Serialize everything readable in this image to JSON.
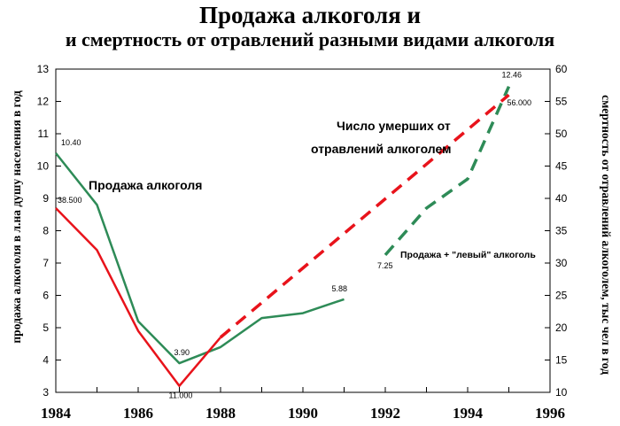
{
  "chart_data": {
    "type": "line",
    "title": "Продажа алкоголя и",
    "subtitle": "и смертность от отравлений разными видами алкоголя",
    "ylabel_left": "продажа алкоголя в л.на душу населения в год",
    "ylabel_right": "смертность от отравлений алкоголем, тыс чел в год",
    "xlim": [
      1984,
      1996
    ],
    "ylim_left": [
      3,
      13
    ],
    "ylim_right": [
      10,
      60
    ],
    "x_ticks": [
      "1984",
      "1986",
      "1988",
      "1990",
      "1992",
      "1994",
      "1996"
    ],
    "y_ticks_left": [
      "3",
      "4",
      "5",
      "6",
      "7",
      "8",
      "9",
      "10",
      "11",
      "12",
      "13"
    ],
    "y_ticks_right": [
      "10",
      "15",
      "20",
      "25",
      "30",
      "35",
      "40",
      "45",
      "50",
      "55",
      "60"
    ],
    "grid": false,
    "colors": {
      "sales": "#2e8b57",
      "deaths": "#e8131b"
    },
    "series": [
      {
        "key": "sales",
        "axis": "left",
        "style": "solid",
        "x": [
          1984,
          1985,
          1986,
          1987,
          1988,
          1989,
          1990,
          1991
        ],
        "y": [
          10.4,
          8.8,
          5.2,
          3.9,
          4.4,
          5.3,
          5.45,
          5.88
        ]
      },
      {
        "key": "sales_illegal",
        "axis": "left",
        "style": "dashed",
        "x": [
          1992,
          1993,
          1994,
          1995
        ],
        "y": [
          7.25,
          8.7,
          9.6,
          12.46
        ]
      },
      {
        "key": "deaths",
        "axis": "right",
        "style": "solid",
        "x": [
          1984,
          1985,
          1986,
          1987,
          1988
        ],
        "y": [
          38.5,
          32.0,
          19.5,
          11.0,
          18.5
        ]
      },
      {
        "key": "deaths_dashed",
        "axis": "right",
        "style": "dashed",
        "x": [
          1988,
          1995
        ],
        "y": [
          18.5,
          56.0
        ]
      }
    ],
    "data_labels": [
      {
        "axis": "left",
        "x": 1984,
        "y": 10.4,
        "text": "10.40"
      },
      {
        "axis": "right",
        "x": 1984,
        "y": 38.5,
        "text": "38.500"
      },
      {
        "axis": "left",
        "x": 1987,
        "y": 3.9,
        "text": "3.90"
      },
      {
        "axis": "right",
        "x": 1987,
        "y": 11.0,
        "text": "11.000"
      },
      {
        "axis": "left",
        "x": 1991,
        "y": 5.88,
        "text": "5.88"
      },
      {
        "axis": "left",
        "x": 1992,
        "y": 7.25,
        "text": "7.25"
      },
      {
        "axis": "left",
        "x": 1995,
        "y": 12.46,
        "text": "12.46"
      },
      {
        "axis": "right",
        "x": 1995,
        "y": 56.0,
        "text": "56.000"
      }
    ],
    "annotations": [
      {
        "key": "sales_label",
        "text": "Продажа алкоголя"
      },
      {
        "key": "deaths_label_1",
        "text": "Число умерших от"
      },
      {
        "key": "deaths_label_2",
        "text": "отравлений алкоголем"
      },
      {
        "key": "illegal_label",
        "text": "Продажа + \"левый\" алкоголь"
      }
    ]
  }
}
